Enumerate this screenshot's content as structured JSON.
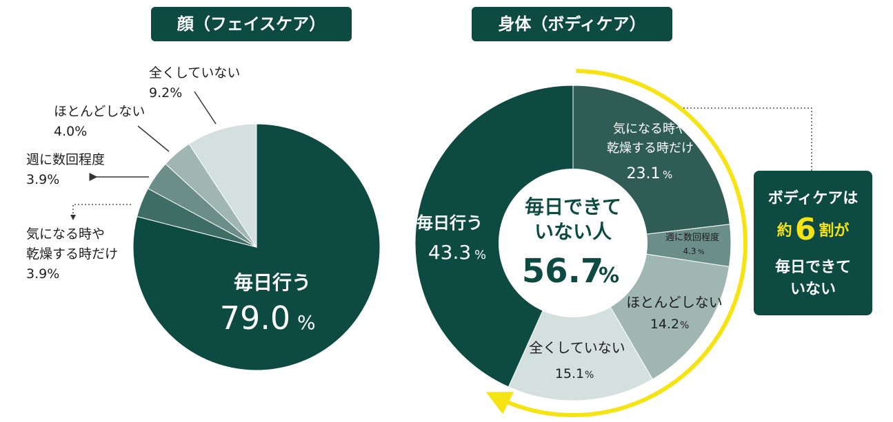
{
  "chart_data": [
    {
      "type": "pie",
      "title": "顔（フェイスケア）",
      "unit": "%",
      "slices": [
        {
          "label": "毎日行う",
          "value": 79.0,
          "value_text": "79.0",
          "color": "#0d4a42"
        },
        {
          "label": "気になる時や乾燥する時だけ",
          "label_lines": [
            "気になる時や",
            "乾燥する時だけ"
          ],
          "value": 3.9,
          "value_text": "3.9%",
          "color": "#3e6d65"
        },
        {
          "label": "週に数回程度",
          "value": 3.9,
          "value_text": "3.9%",
          "color": "#6c8e88"
        },
        {
          "label": "ほとんどしない",
          "value": 4.0,
          "value_text": "4.0%",
          "color": "#9fb6b1"
        },
        {
          "label": "全くしていない",
          "value": 9.2,
          "value_text": "9.2%",
          "color": "#d4e0dd"
        }
      ]
    },
    {
      "type": "pie",
      "title": "身体（ボディケア）",
      "unit": "%",
      "slices": [
        {
          "label": "気になる時や乾燥する時だけ",
          "label_lines": [
            "気になる時や",
            "乾燥する時だけ"
          ],
          "value": 23.1,
          "value_text": "23.1",
          "color": "#2f5d55"
        },
        {
          "label": "週に数回程度",
          "value": 4.3,
          "value_text": "4.3",
          "color": "#6c8e88"
        },
        {
          "label": "ほとんどしない",
          "value": 14.2,
          "value_text": "14.2",
          "color": "#9fb6b1"
        },
        {
          "label": "全くしていない",
          "value": 15.1,
          "value_text": "15.1",
          "color": "#d4e0dd"
        },
        {
          "label": "毎日行う",
          "value": 43.3,
          "value_text": "43.3",
          "color": "#0d4a42"
        }
      ],
      "center": {
        "lines": [
          "毎日できて",
          "いない人"
        ],
        "value": 56.7,
        "value_text": "56.7"
      }
    }
  ],
  "callout": {
    "line1": "ボディケアは",
    "pre": "約",
    "number": "6",
    "post": "割が",
    "line3": "毎日できて",
    "line4": "いない"
  },
  "colors": {
    "dark_green": "#0d4a42",
    "highlight_yellow": "#f5e313"
  }
}
